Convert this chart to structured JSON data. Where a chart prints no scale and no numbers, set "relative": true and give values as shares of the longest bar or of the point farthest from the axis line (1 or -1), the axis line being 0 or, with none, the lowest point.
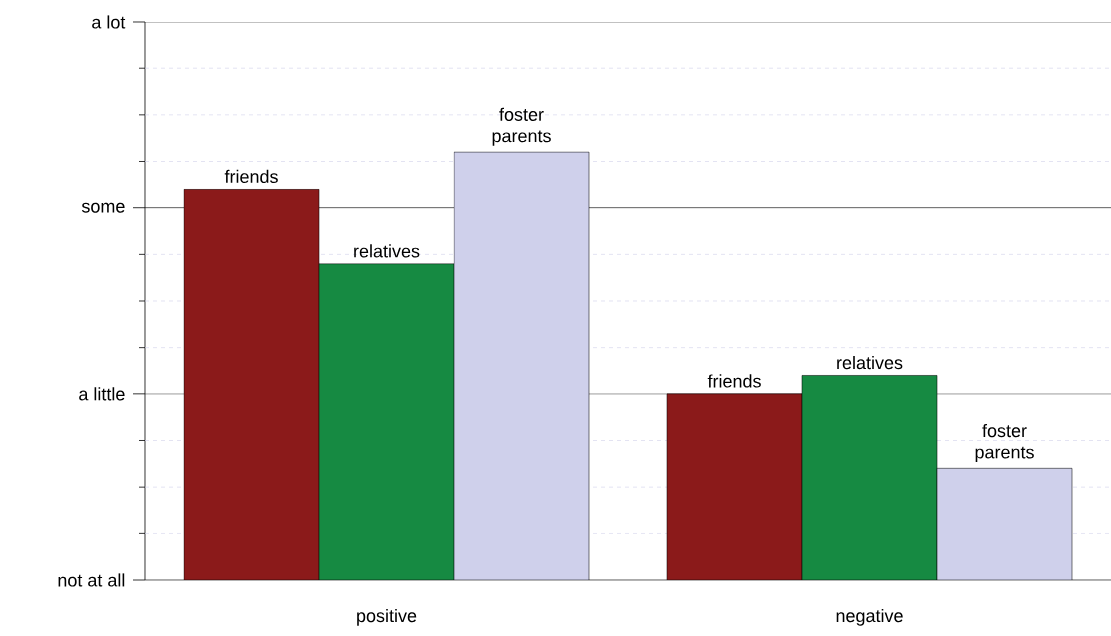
{
  "chart_data": {
    "type": "bar",
    "relative": true,
    "categories": [
      "positive",
      "negative"
    ],
    "series": [
      {
        "name": "friends",
        "color": "#8b1a1a",
        "values": [
          0.913,
          0.435
        ]
      },
      {
        "name": "relatives",
        "color": "#168a42",
        "values": [
          0.739,
          0.478
        ]
      },
      {
        "name": "foster parents",
        "color": "#cfd0eb",
        "values": [
          1.0,
          0.261
        ]
      }
    ],
    "ref_lines": [
      {
        "axis": "y",
        "value": 0,
        "label": "not at all",
        "color": "#000000",
        "line_style": "solid"
      },
      {
        "axis": "y",
        "value": 0.109,
        "color": "#d4d4ec",
        "line_style": "dashed"
      },
      {
        "axis": "y",
        "value": 0.217,
        "color": "#d4d4ec",
        "line_style": "dashed"
      },
      {
        "axis": "y",
        "value": 0.326,
        "color": "#d4d4ec",
        "line_style": "dashed"
      },
      {
        "axis": "y",
        "value": 0.435,
        "label": "a little",
        "color": "#000000",
        "line_style": "solid"
      },
      {
        "axis": "y",
        "value": 0.543,
        "color": "#d4d4ec",
        "line_style": "dashed"
      },
      {
        "axis": "y",
        "value": 0.652,
        "color": "#d4d4ec",
        "line_style": "dashed"
      },
      {
        "axis": "y",
        "value": 0.761,
        "color": "#d4d4ec",
        "line_style": "dashed"
      },
      {
        "axis": "y",
        "value": 0.87,
        "label": "some",
        "color": "#000000",
        "line_style": "solid"
      },
      {
        "axis": "y",
        "value": 0.978,
        "color": "#d4d4ec",
        "line_style": "dashed"
      },
      {
        "axis": "y",
        "value": 1.087,
        "color": "#d4d4ec",
        "line_style": "dashed"
      },
      {
        "axis": "y",
        "value": 1.196,
        "color": "#d4d4ec",
        "line_style": "dashed"
      },
      {
        "axis": "y",
        "value": 1.304,
        "label": "a lot",
        "color": "#000000",
        "line_style": "solid"
      }
    ]
  }
}
